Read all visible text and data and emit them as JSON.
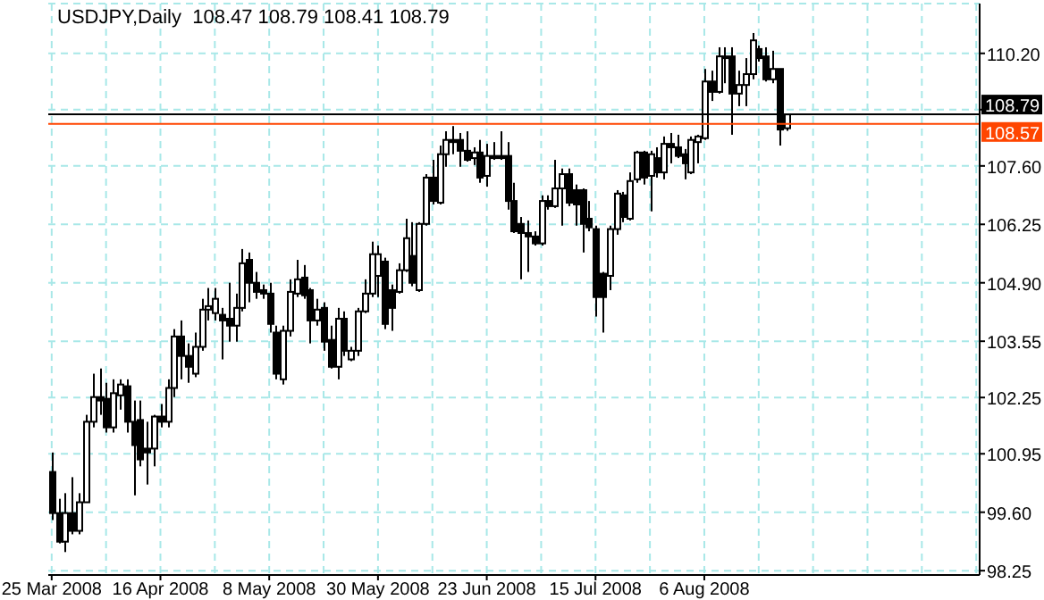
{
  "chart_data": {
    "type": "candlestick",
    "title": "USDJPY,Daily  108.47 108.79 108.41 108.79",
    "categories": [
      "25 Mar 2008",
      null,
      null,
      null,
      null,
      null,
      null,
      null,
      null,
      null,
      null,
      null,
      null,
      null,
      null,
      null,
      "16 Apr 2008",
      null,
      null,
      null,
      null,
      null,
      null,
      null,
      null,
      null,
      null,
      null,
      null,
      null,
      null,
      null,
      "8 May 2008",
      null,
      null,
      null,
      null,
      null,
      null,
      null,
      null,
      null,
      null,
      null,
      null,
      null,
      null,
      null,
      "30 May 2008",
      null,
      null,
      null,
      null,
      null,
      null,
      null,
      null,
      null,
      null,
      null,
      null,
      null,
      null,
      null,
      "23 Jun 2008",
      null,
      null,
      null,
      null,
      null,
      null,
      null,
      null,
      null,
      null,
      null,
      null,
      null,
      null,
      null,
      "15 Jul 2008",
      null,
      null,
      null,
      null,
      null,
      null,
      null,
      null,
      null,
      null,
      null,
      null,
      null,
      null,
      null,
      "6 Aug 2008",
      null,
      null,
      null,
      null,
      null,
      null,
      null,
      null,
      null,
      null,
      null,
      null,
      null,
      null,
      null,
      null,
      null,
      null,
      null,
      null,
      null,
      null,
      null,
      null,
      null,
      null,
      null,
      null,
      null,
      null,
      null,
      null,
      null,
      null,
      null,
      null,
      null,
      null,
      null,
      null
    ],
    "ohlc": [
      [
        100.53,
        100.98,
        99.42,
        99.58
      ],
      [
        99.58,
        99.91,
        98.88,
        98.92
      ],
      [
        98.92,
        100.04,
        98.68,
        99.58
      ],
      [
        99.58,
        100.41,
        99.09,
        99.17
      ],
      [
        99.17,
        100.04,
        99.09,
        99.83
      ],
      [
        99.83,
        101.85,
        99.83,
        101.69
      ],
      [
        101.69,
        102.8,
        101.56,
        102.26
      ],
      [
        102.26,
        102.92,
        101.85,
        102.18
      ],
      [
        102.22,
        102.59,
        101.44,
        101.56
      ],
      [
        101.56,
        102.67,
        101.44,
        102.35
      ],
      [
        102.3,
        102.67,
        101.97,
        102.55
      ],
      [
        102.51,
        102.67,
        101.44,
        101.69
      ],
      [
        101.69,
        102.18,
        99.99,
        101.15
      ],
      [
        101.73,
        102.18,
        100.66,
        100.82
      ],
      [
        101.07,
        101.69,
        100.24,
        100.98
      ],
      [
        101.07,
        101.85,
        100.66,
        101.81
      ],
      [
        101.81,
        102.1,
        101.56,
        101.69
      ],
      [
        101.69,
        102.67,
        101.56,
        102.47
      ],
      [
        102.47,
        103.83,
        102.26,
        103.66
      ],
      [
        103.66,
        104.03,
        102.67,
        103.21
      ],
      [
        103.21,
        103.5,
        102.59,
        102.96
      ],
      [
        102.8,
        103.75,
        102.72,
        103.42
      ],
      [
        103.42,
        104.53,
        103.33,
        104.28
      ],
      [
        104.28,
        104.78,
        104.03,
        104.36
      ],
      [
        104.2,
        104.78,
        104.03,
        104.53
      ],
      [
        104.16,
        104.32,
        103.13,
        104.03
      ],
      [
        104.07,
        104.9,
        103.54,
        103.91
      ],
      [
        103.91,
        104.65,
        103.54,
        104.32
      ],
      [
        104.32,
        105.68,
        104.24,
        105.35
      ],
      [
        105.43,
        105.6,
        104.45,
        104.9
      ],
      [
        104.9,
        105.15,
        104.53,
        104.69
      ],
      [
        104.73,
        104.86,
        104.53,
        104.65
      ],
      [
        104.65,
        104.9,
        103.75,
        103.95
      ],
      [
        103.75,
        103.91,
        102.67,
        102.8
      ],
      [
        102.67,
        103.91,
        102.55,
        103.79
      ],
      [
        103.79,
        104.98,
        103.66,
        104.69
      ],
      [
        104.65,
        105.43,
        104.57,
        104.98
      ],
      [
        105.02,
        105.31,
        104.53,
        104.61
      ],
      [
        104.73,
        104.78,
        103.5,
        104.03
      ],
      [
        104.03,
        104.53,
        103.91,
        104.28
      ],
      [
        104.32,
        104.45,
        103.33,
        103.54
      ],
      [
        103.58,
        103.91,
        102.92,
        102.96
      ],
      [
        102.96,
        104.32,
        102.67,
        104.07
      ],
      [
        104.07,
        104.24,
        103.21,
        103.33
      ],
      [
        103.13,
        103.42,
        103.09,
        103.33
      ],
      [
        103.33,
        104.32,
        103.21,
        104.24
      ],
      [
        104.24,
        104.98,
        104.2,
        104.65
      ],
      [
        104.65,
        105.85,
        104.57,
        105.56
      ],
      [
        105.06,
        105.76,
        104.57,
        105.56
      ],
      [
        105.39,
        105.48,
        103.83,
        103.95
      ],
      [
        104.73,
        104.86,
        103.79,
        104.32
      ],
      [
        104.69,
        105.35,
        104.65,
        105.19
      ],
      [
        105.19,
        106.38,
        105.15,
        105.93
      ],
      [
        105.52,
        106.3,
        104.82,
        104.9
      ],
      [
        104.73,
        106.3,
        104.69,
        106.26
      ],
      [
        106.26,
        107.41,
        106.22,
        107.33
      ],
      [
        107.33,
        107.74,
        106.71,
        106.79
      ],
      [
        106.75,
        108.07,
        106.71,
        107.87
      ],
      [
        107.87,
        108.4,
        107.58,
        108.2
      ],
      [
        108.2,
        108.52,
        107.87,
        108.15
      ],
      [
        108.2,
        108.36,
        107.58,
        107.95
      ],
      [
        107.95,
        108.4,
        107.7,
        107.74
      ],
      [
        107.78,
        108.03,
        107.62,
        107.91
      ],
      [
        107.91,
        108.2,
        107.21,
        107.33
      ],
      [
        107.37,
        108.11,
        107.12,
        107.83
      ],
      [
        107.83,
        108.15,
        107.74,
        107.78
      ],
      [
        107.83,
        108.4,
        107.74,
        107.78
      ],
      [
        107.83,
        108.15,
        106.59,
        106.79
      ],
      [
        106.79,
        107.21,
        106.05,
        106.09
      ],
      [
        106.26,
        106.42,
        104.98,
        106.05
      ],
      [
        106.05,
        106.34,
        105.15,
        105.97
      ],
      [
        105.97,
        106.09,
        105.76,
        105.81
      ],
      [
        105.81,
        106.92,
        105.76,
        106.79
      ],
      [
        106.79,
        106.92,
        106.59,
        106.67
      ],
      [
        106.67,
        107.74,
        106.63,
        107.08
      ],
      [
        107.08,
        107.54,
        106.22,
        107.41
      ],
      [
        107.41,
        107.54,
        106.67,
        106.75
      ],
      [
        107.04,
        107.17,
        106.22,
        106.71
      ],
      [
        107.04,
        107.08,
        105.6,
        106.26
      ],
      [
        106.38,
        106.79,
        106.09,
        106.18
      ],
      [
        106.14,
        106.22,
        104.12,
        104.57
      ],
      [
        105.11,
        105.15,
        103.75,
        104.57
      ],
      [
        105.06,
        106.22,
        104.73,
        106.14
      ],
      [
        106.14,
        107.04,
        106.01,
        106.96
      ],
      [
        106.92,
        107.0,
        106.3,
        106.42
      ],
      [
        106.38,
        107.45,
        106.34,
        107.25
      ],
      [
        107.29,
        107.95,
        107.21,
        107.91
      ],
      [
        107.91,
        107.95,
        107.17,
        107.33
      ],
      [
        107.37,
        107.95,
        106.55,
        107.87
      ],
      [
        107.78,
        108.03,
        107.33,
        107.45
      ],
      [
        107.45,
        108.28,
        107.29,
        108.11
      ],
      [
        108.11,
        108.36,
        107.66,
        108.03
      ],
      [
        108.03,
        108.32,
        107.78,
        107.83
      ],
      [
        107.87,
        107.99,
        107.29,
        107.66
      ],
      [
        107.45,
        108.28,
        107.41,
        108.2
      ],
      [
        108.15,
        108.32,
        107.66,
        108.28
      ],
      [
        108.24,
        109.84,
        108.2,
        109.55
      ],
      [
        109.55,
        109.8,
        109.1,
        109.31
      ],
      [
        109.31,
        110.34,
        109.27,
        110.13
      ],
      [
        110.09,
        110.34,
        109.51,
        110.13
      ],
      [
        110.13,
        110.34,
        108.32,
        109.27
      ],
      [
        109.27,
        109.8,
        108.98,
        109.47
      ],
      [
        109.47,
        110.09,
        108.98,
        109.72
      ],
      [
        109.72,
        110.67,
        109.6,
        110.5
      ],
      [
        110.3,
        110.38,
        110.01,
        110.09
      ],
      [
        110.13,
        110.34,
        109.55,
        109.6
      ],
      [
        109.6,
        110.26,
        109.51,
        109.84
      ],
      [
        109.84,
        109.84,
        108.07,
        108.44
      ],
      [
        108.47,
        108.79,
        108.41,
        108.79
      ],
      null,
      null,
      null,
      null,
      null,
      null,
      null,
      null,
      null,
      null,
      null,
      null,
      null,
      null,
      null,
      null,
      null,
      null,
      null,
      null,
      null,
      null,
      null,
      null,
      null,
      null,
      null,
      null
    ],
    "ylim": [
      98.15,
      111.35
    ],
    "yticks": [
      98.25,
      {
        "value": 99.6,
        "label": "99.60"
      },
      100.95,
      102.25,
      103.55,
      {
        "value": 104.9,
        "label": "104.90"
      },
      106.25,
      {
        "value": 107.6,
        "label": "107.60"
      },
      {
        "value": 108.9,
        "label": null
      },
      {
        "value": 110.2,
        "label": "110.20"
      }
    ],
    "grid": true,
    "ref_lines": [
      {
        "axis": "y",
        "value": 108.79,
        "label": "108.79",
        "color": "#000000"
      },
      {
        "axis": "y",
        "value": 108.57,
        "label": "108.57",
        "color": "#ff4500"
      }
    ]
  }
}
